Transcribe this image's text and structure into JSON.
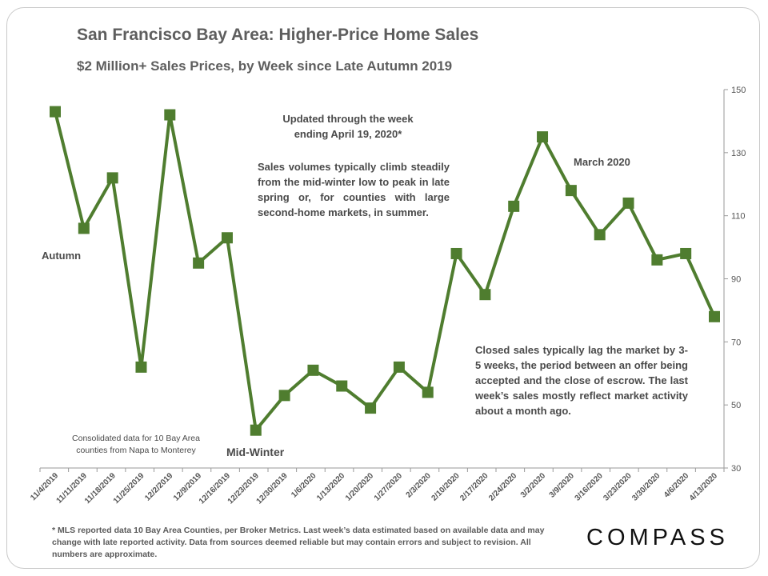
{
  "title": "San Francisco Bay Area: Higher-Price Home Sales",
  "subtitle": "$2 Million+ Sales Prices, by Week since Late Autumn 2019",
  "annotations": {
    "updated_line1": "Updated through the week",
    "updated_line2": "ending April 19, 2020*",
    "sales_volumes": "Sales volumes typically climb steadily from the mid-winter low to peak in late spring or, for counties with large second-home markets, in summer.",
    "march": "March 2020",
    "autumn": "Autumn",
    "mid_winter": "Mid-Winter",
    "consolidated": "Consolidated data for 10 Bay Area counties from Napa to Monterey",
    "closed_sales": "Closed sales typically lag the market by 3-5 weeks, the period between an offer being accepted and the close of escrow. The last week’s sales mostly reflect market activity about a month ago."
  },
  "footnote": "* MLS reported data 10 Bay Area Counties, per Broker Metrics. Last week’s data estimated based on available data and may change with late reported activity. Data from sources deemed reliable but may contain errors and subject to revision. All numbers are approximate.",
  "logo": "COMPASS",
  "colors": {
    "series": "#4f7d2f",
    "axis": "#9a9a9a",
    "text": "#5e5e5e"
  },
  "chart_data": {
    "type": "line",
    "title": "San Francisco Bay Area: Higher-Price Home Sales",
    "subtitle": "$2 Million+ Sales Prices, by Week since Late Autumn 2019",
    "categories": [
      "11/4/2019",
      "11/11/2019",
      "11/18/2019",
      "11/25/2019",
      "12/2/2019",
      "12/9/2019",
      "12/16/2019",
      "12/23/2019",
      "12/30/2019",
      "1/6/2020",
      "1/13/2020",
      "1/20/2020",
      "1/27/2020",
      "2/3/2020",
      "2/10/2020",
      "2/17/2020",
      "2/24/2020",
      "3/2/2020",
      "3/9/2020",
      "3/16/2020",
      "3/23/2020",
      "3/30/2020",
      "4/6/2020",
      "4/13/2020"
    ],
    "series": [
      {
        "values": [
          143,
          106,
          122,
          62,
          142,
          95,
          103,
          42,
          53,
          61,
          56,
          49,
          62,
          54,
          98,
          85,
          113,
          135,
          118,
          104,
          114,
          96,
          98,
          78
        ]
      }
    ],
    "ylim": [
      30,
      150
    ],
    "yticks": [
      30,
      50,
      70,
      90,
      110,
      130,
      150
    ],
    "y_axis_side": "right",
    "grid": false,
    "legend": "none",
    "marker": "square"
  }
}
